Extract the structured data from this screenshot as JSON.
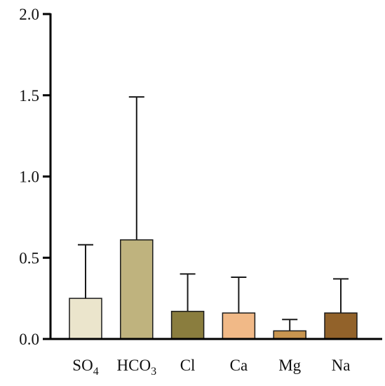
{
  "chart_data": {
    "type": "bar",
    "title": "",
    "xlabel": "",
    "ylabel": "",
    "ylim": [
      0,
      2.0
    ],
    "yticks": [
      "0.0",
      "0.5",
      "1.0",
      "1.5",
      "2.0"
    ],
    "grid": false,
    "legend": "none",
    "categories": [
      {
        "base": "SO",
        "sub": "4"
      },
      {
        "base": "HCO",
        "sub": "3"
      },
      {
        "base": "Cl",
        "sub": ""
      },
      {
        "base": "Ca",
        "sub": ""
      },
      {
        "base": "Mg",
        "sub": ""
      },
      {
        "base": "Na",
        "sub": ""
      }
    ],
    "values": [
      0.25,
      0.61,
      0.17,
      0.16,
      0.05,
      0.16
    ],
    "error_upper": [
      0.58,
      1.49,
      0.4,
      0.38,
      0.12,
      0.37
    ],
    "colors": [
      "#ebe5cc",
      "#bfb37e",
      "#8a7d3e",
      "#f1b987",
      "#c89550",
      "#92622a"
    ]
  }
}
